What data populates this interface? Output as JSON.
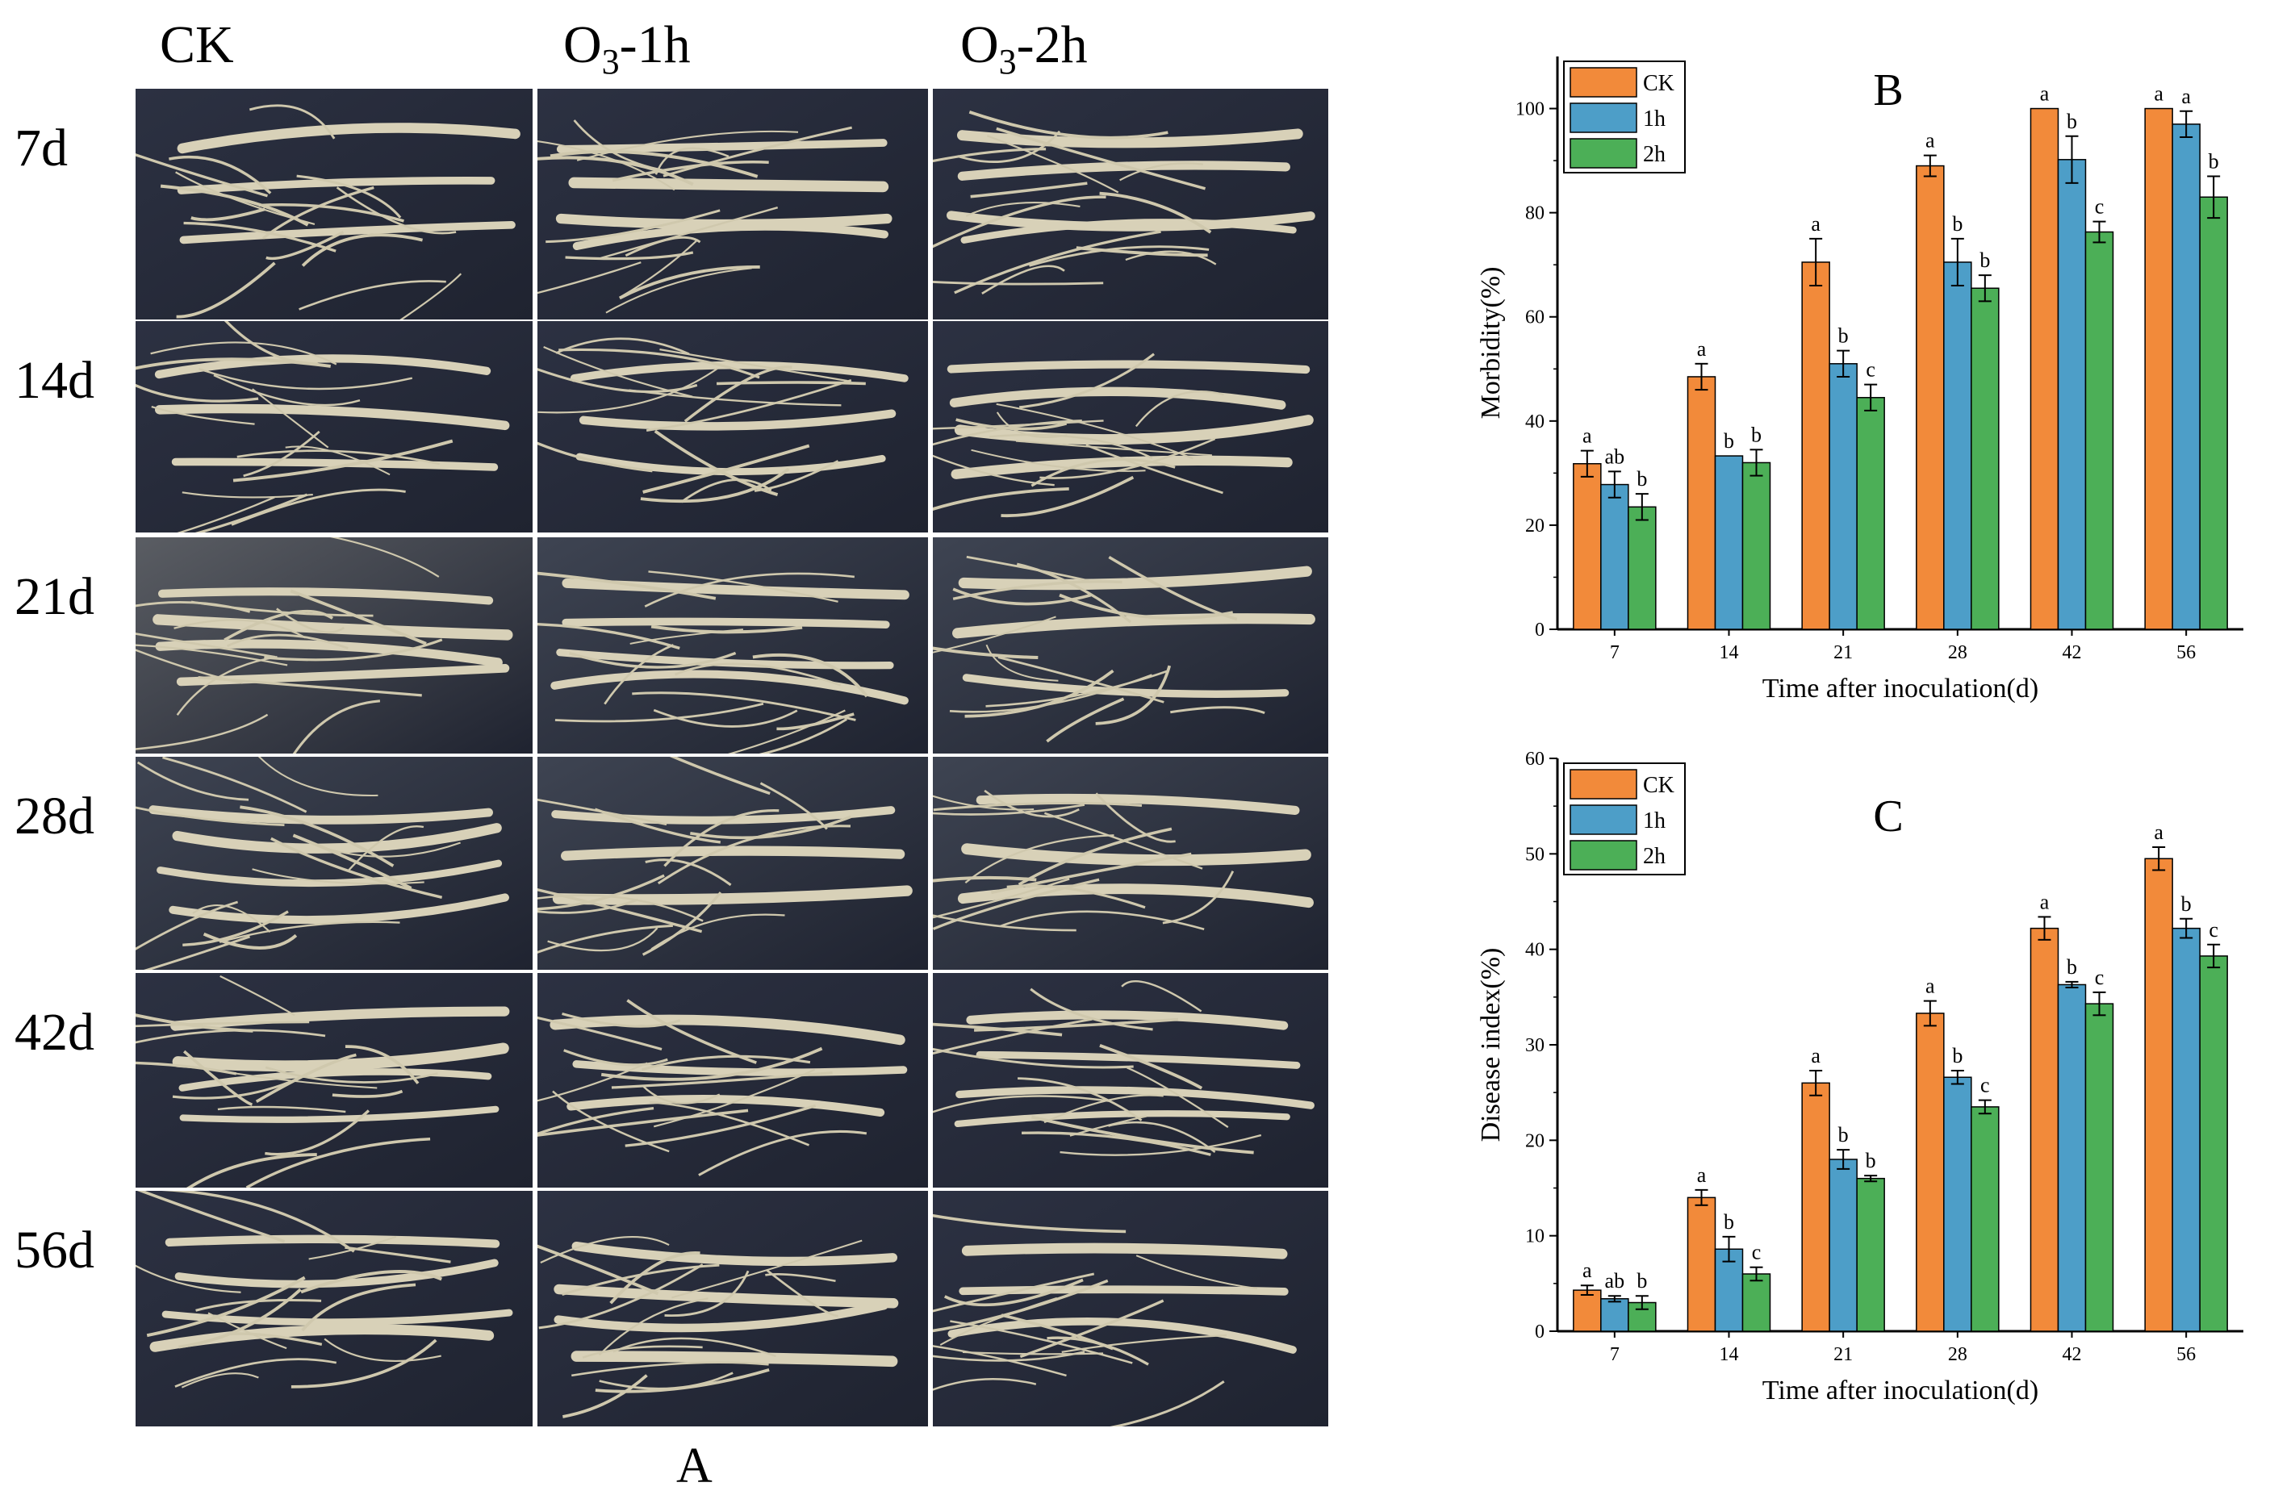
{
  "panel_a": {
    "label": "A",
    "columns": [
      "CK",
      "O3-1h",
      "O3-2h"
    ],
    "rows": [
      "7d",
      "14d",
      "21d",
      "28d",
      "42d",
      "56d"
    ]
  },
  "legend_entries": [
    "CK",
    "1h",
    "2h"
  ],
  "colors": {
    "CK": "#f28a3a",
    "1h": "#4d9ec8",
    "2h": "#4caf57"
  },
  "chart_data": [
    {
      "type": "bar",
      "panel": "B",
      "categories": [
        "7",
        "14",
        "21",
        "28",
        "42",
        "56"
      ],
      "xlabel": "Time after inoculation(d)",
      "ylabel": "Morbidity(%)",
      "ylim": [
        0,
        110
      ],
      "yticks": [
        0,
        20,
        40,
        60,
        80,
        100
      ],
      "legend_position": "top-left",
      "series": [
        {
          "name": "CK",
          "values": [
            31.8,
            48.5,
            70.5,
            89.0,
            100,
            100
          ],
          "errors": [
            2.5,
            2.5,
            4.5,
            2.0,
            0,
            0
          ],
          "letters": [
            "a",
            "a",
            "a",
            "a",
            "a",
            "a"
          ]
        },
        {
          "name": "1h",
          "values": [
            27.8,
            33.3,
            51.0,
            70.5,
            90.2,
            97.0
          ],
          "errors": [
            2.5,
            0,
            2.5,
            4.5,
            4.5,
            2.5
          ],
          "letters": [
            "ab",
            "b",
            "b",
            "b",
            "b",
            "a"
          ]
        },
        {
          "name": "2h",
          "values": [
            23.5,
            32.0,
            44.5,
            65.5,
            76.3,
            83.0
          ],
          "errors": [
            2.5,
            2.5,
            2.5,
            2.5,
            2.0,
            4.0
          ],
          "letters": [
            "b",
            "b",
            "c",
            "b",
            "c",
            "b"
          ]
        }
      ]
    },
    {
      "type": "bar",
      "panel": "C",
      "categories": [
        "7",
        "14",
        "21",
        "28",
        "42",
        "56"
      ],
      "xlabel": "Time after inoculation(d)",
      "ylabel": "Disease index(%)",
      "ylim": [
        0,
        60
      ],
      "yticks": [
        0,
        10,
        20,
        30,
        40,
        50,
        60
      ],
      "legend_position": "top-left",
      "series": [
        {
          "name": "CK",
          "values": [
            4.3,
            14.0,
            26.0,
            33.3,
            42.2,
            49.5
          ],
          "errors": [
            0.5,
            0.8,
            1.3,
            1.3,
            1.2,
            1.2
          ],
          "letters": [
            "a",
            "a",
            "a",
            "a",
            "a",
            "a"
          ]
        },
        {
          "name": "1h",
          "values": [
            3.4,
            8.6,
            18.0,
            26.6,
            36.3,
            42.2
          ],
          "errors": [
            0.3,
            1.3,
            1.0,
            0.7,
            0.3,
            1.0
          ],
          "letters": [
            "ab",
            "b",
            "b",
            "b",
            "b",
            "b"
          ]
        },
        {
          "name": "2h",
          "values": [
            3.0,
            6.0,
            16.0,
            23.5,
            34.3,
            39.3
          ],
          "errors": [
            0.7,
            0.7,
            0.3,
            0.7,
            1.2,
            1.2
          ],
          "letters": [
            "b",
            "c",
            "b",
            "c",
            "c",
            "c"
          ]
        }
      ]
    }
  ]
}
